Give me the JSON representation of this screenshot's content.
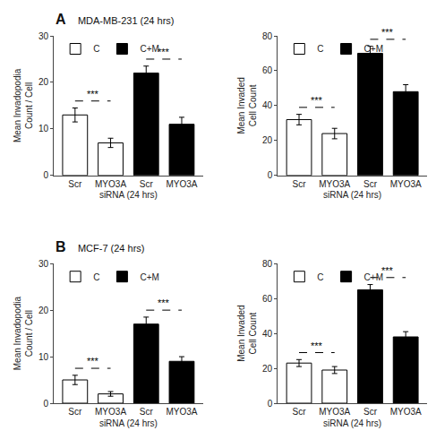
{
  "chart_data": [
    {
      "type": "bar",
      "title": "A",
      "subtitle": "MDA-MB-231 (24 hrs)",
      "categories": [
        "Scr",
        "MYO3A",
        "Scr",
        "MYO3A"
      ],
      "series": [
        {
          "name": "C",
          "color": "white",
          "values": [
            13,
            7,
            null,
            null
          ],
          "errors": [
            1.5,
            1.0,
            null,
            null
          ]
        },
        {
          "name": "C+M",
          "color": "black",
          "values": [
            null,
            null,
            22,
            11
          ],
          "errors": [
            null,
            null,
            1.5,
            1.5
          ]
        }
      ],
      "xlabel": "siRNA (24 hrs)",
      "ylabel": "Mean Invadopodia\nCount / Cell",
      "ylim": [
        0,
        30
      ],
      "yticks": [
        0,
        10,
        20,
        30
      ],
      "legend": "upper left",
      "grid": false,
      "annotations": [
        {
          "text": "***",
          "series": "C"
        },
        {
          "text": "***",
          "series": "C+M"
        }
      ]
    },
    {
      "type": "bar",
      "categories": [
        "Scr",
        "MYO3A",
        "Scr",
        "MYO3A"
      ],
      "series": [
        {
          "name": "C",
          "color": "white",
          "values": [
            32,
            24,
            null,
            null
          ],
          "errors": [
            3,
            3,
            null,
            null
          ]
        },
        {
          "name": "C+M",
          "color": "black",
          "values": [
            null,
            null,
            70,
            48
          ],
          "errors": [
            null,
            null,
            4,
            4
          ]
        }
      ],
      "xlabel": "siRNA (24 hrs)",
      "ylabel": "Mean Invaded\nCell Count",
      "ylim": [
        0,
        80
      ],
      "yticks": [
        0,
        20,
        40,
        60,
        80
      ],
      "legend": "upper left",
      "grid": false,
      "annotations": [
        {
          "text": "***",
          "series": "C"
        },
        {
          "text": "***",
          "series": "C+M"
        }
      ]
    },
    {
      "type": "bar",
      "title": "B",
      "subtitle": "MCF-7 (24 hrs)",
      "categories": [
        "Scr",
        "MYO3A",
        "Scr",
        "MYO3A"
      ],
      "series": [
        {
          "name": "C",
          "color": "white",
          "values": [
            5,
            2,
            null,
            null
          ],
          "errors": [
            1.0,
            0.5,
            null,
            null
          ]
        },
        {
          "name": "C+M",
          "color": "black",
          "values": [
            null,
            null,
            17,
            9
          ],
          "errors": [
            null,
            null,
            1.5,
            1.0
          ]
        }
      ],
      "xlabel": "siRNA (24 hrs)",
      "ylabel": "Mean Invadopodia\nCount / Cell",
      "ylim": [
        0,
        30
      ],
      "yticks": [
        0,
        10,
        20,
        30
      ],
      "legend": "upper left",
      "grid": false,
      "annotations": [
        {
          "text": "***",
          "series": "C"
        },
        {
          "text": "***",
          "series": "C+M"
        }
      ]
    },
    {
      "type": "bar",
      "categories": [
        "Scr",
        "MYO3A",
        "Scr",
        "MYO3A"
      ],
      "series": [
        {
          "name": "C",
          "color": "white",
          "values": [
            23,
            19,
            null,
            null
          ],
          "errors": [
            2,
            2,
            null,
            null
          ]
        },
        {
          "name": "C+M",
          "color": "black",
          "values": [
            null,
            null,
            65,
            38
          ],
          "errors": [
            null,
            null,
            3,
            3
          ]
        }
      ],
      "xlabel": "siRNA (24 hrs)",
      "ylabel": "Mean Invaded\nCell Count",
      "ylim": [
        0,
        80
      ],
      "yticks": [
        0,
        20,
        40,
        60,
        80
      ],
      "legend": "upper left",
      "grid": false,
      "annotations": [
        {
          "text": "***",
          "series": "C"
        },
        {
          "text": "***",
          "series": "C+M"
        }
      ]
    }
  ]
}
